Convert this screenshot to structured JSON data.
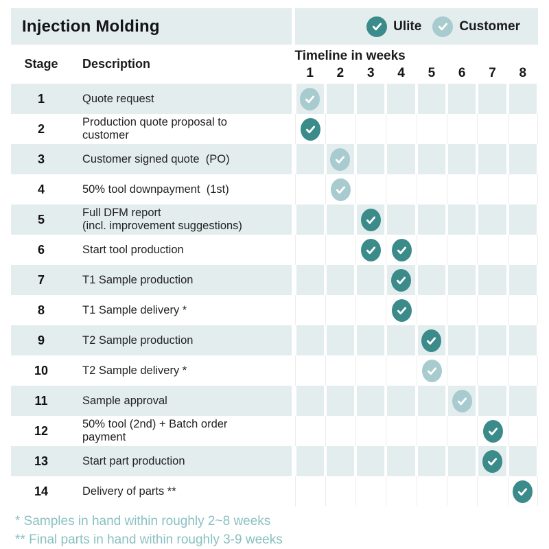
{
  "chart_data": {
    "type": "table",
    "title": "Injection Molding",
    "timeline_header": "Timeline in weeks",
    "columns": {
      "stage": "Stage",
      "description": "Description"
    },
    "weeks": [
      "1",
      "2",
      "3",
      "4",
      "5",
      "6",
      "7",
      "8"
    ],
    "legend": [
      {
        "name": "Ulite",
        "role": "ulite",
        "color": "#3a8b8a"
      },
      {
        "name": "Customer",
        "role": "customer",
        "color": "#a7cbce"
      }
    ],
    "rows": [
      {
        "stage": "1",
        "description": "Quote request",
        "marks": [
          {
            "week": 1,
            "actor": "customer"
          }
        ]
      },
      {
        "stage": "2",
        "description": "Production quote proposal to\ncustomer",
        "marks": [
          {
            "week": 1,
            "actor": "ulite"
          }
        ]
      },
      {
        "stage": "3",
        "description": "Customer signed quote  (PO)",
        "marks": [
          {
            "week": 2,
            "actor": "customer"
          }
        ]
      },
      {
        "stage": "4",
        "description": "50% tool downpayment  (1st)",
        "marks": [
          {
            "week": 2,
            "actor": "customer"
          }
        ]
      },
      {
        "stage": "5",
        "description": "Full DFM report\n(incl. improvement suggestions)",
        "marks": [
          {
            "week": 3,
            "actor": "ulite"
          }
        ]
      },
      {
        "stage": "6",
        "description": "Start tool production",
        "marks": [
          {
            "week": 3,
            "actor": "ulite"
          },
          {
            "week": 4,
            "actor": "ulite"
          }
        ]
      },
      {
        "stage": "7",
        "description": "T1 Sample production",
        "marks": [
          {
            "week": 4,
            "actor": "ulite"
          }
        ]
      },
      {
        "stage": "8",
        "description": "T1 Sample delivery *",
        "marks": [
          {
            "week": 4,
            "actor": "ulite"
          }
        ]
      },
      {
        "stage": "9",
        "description": "T2 Sample production",
        "marks": [
          {
            "week": 5,
            "actor": "ulite"
          }
        ]
      },
      {
        "stage": "10",
        "description": "T2 Sample delivery *",
        "marks": [
          {
            "week": 5,
            "actor": "customer"
          }
        ]
      },
      {
        "stage": "11",
        "description": "Sample approval",
        "marks": [
          {
            "week": 6,
            "actor": "customer"
          }
        ]
      },
      {
        "stage": "12",
        "description": "50% tool (2nd) + Batch order\npayment",
        "marks": [
          {
            "week": 7,
            "actor": "ulite"
          }
        ]
      },
      {
        "stage": "13",
        "description": "Start part production",
        "marks": [
          {
            "week": 7,
            "actor": "ulite"
          }
        ]
      },
      {
        "stage": "14",
        "description": "Delivery of parts **",
        "marks": [
          {
            "week": 8,
            "actor": "ulite"
          }
        ]
      }
    ],
    "footnotes": [
      "* Samples in hand within roughly 2~8 weeks",
      "** Final parts in hand within roughly 3-9 weeks"
    ],
    "colors": {
      "band_background": "#e3edee",
      "ulite_check": "#3a8b8a",
      "customer_check": "#a7cbce",
      "footnote_text": "#89c0c2"
    }
  }
}
